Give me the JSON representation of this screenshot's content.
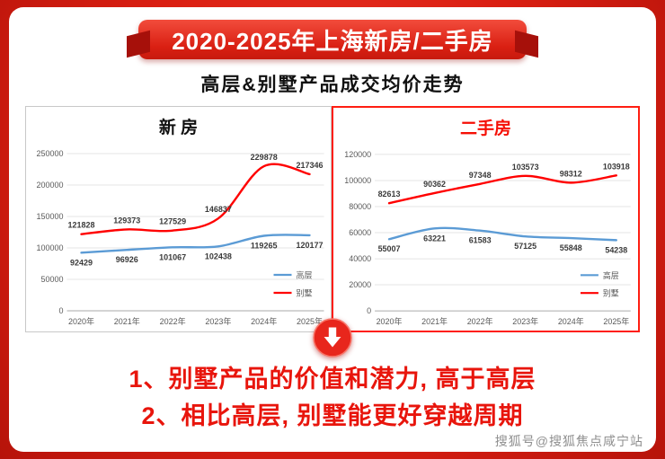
{
  "banner": {
    "title": "2020-2025年上海新房/二手房"
  },
  "subtitle": "高层&别墅产品成交均价走势",
  "colors": {
    "background_red": "#da1f12",
    "banner_red": "#d91f12",
    "accent_red": "#f50f05",
    "series_blue": "#5b9bd5",
    "series_red": "#ff0000",
    "conclusion_red": "#e8150c"
  },
  "chart_data": [
    {
      "type": "line",
      "title": "新 房",
      "categories": [
        "2020年",
        "2021年",
        "2022年",
        "2023年",
        "2024年",
        "2025年"
      ],
      "series": [
        {
          "name": "高层",
          "color": "#5b9bd5",
          "label_pos": "below",
          "values": [
            92429,
            96926,
            101067,
            102438,
            119265,
            120177
          ]
        },
        {
          "name": "别墅",
          "color": "#ff0000",
          "label_pos": "above",
          "values": [
            121828,
            129373,
            127529,
            146837,
            229878,
            217346
          ]
        }
      ],
      "ylim": [
        0,
        250000
      ],
      "yticks": [
        0,
        50000,
        100000,
        150000,
        200000,
        250000
      ],
      "grid": true,
      "legend_position": "right"
    },
    {
      "type": "line",
      "title": "二手房",
      "categories": [
        "2020年",
        "2021年",
        "2022年",
        "2023年",
        "2024年",
        "2025年"
      ],
      "series": [
        {
          "name": "高层",
          "color": "#5b9bd5",
          "label_pos": "below",
          "values": [
            55007,
            63221,
            61583,
            57125,
            55848,
            54238
          ]
        },
        {
          "name": "别墅",
          "color": "#ff0000",
          "label_pos": "above",
          "values": [
            82613,
            90362,
            97348,
            103573,
            98312,
            103918
          ]
        }
      ],
      "ylim": [
        0,
        120000
      ],
      "yticks": [
        0,
        20000,
        40000,
        60000,
        80000,
        100000,
        120000
      ],
      "grid": true,
      "legend_position": "right"
    }
  ],
  "conclusions": [
    "1、别墅产品的价值和潜力, 高于高层",
    "2、相比高层, 别墅能更好穿越周期"
  ],
  "watermark": "搜狐号@搜狐焦点咸宁站"
}
